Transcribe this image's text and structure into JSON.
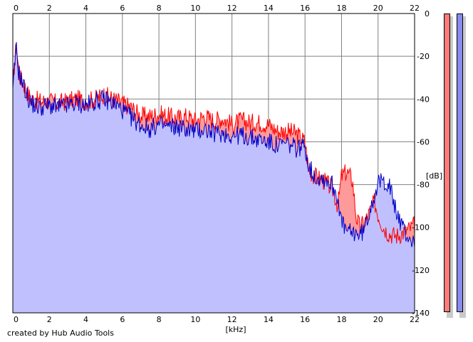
{
  "footer": {
    "credit": "created by Hub Audio Tools"
  },
  "colors": {
    "left_channel": "#ff0000",
    "right_channel": "#0000c8",
    "right_fill": "#c0c0ff",
    "left_fill": "#ff9a9a",
    "grid": "#808080",
    "meter_left": "#ff7a7a",
    "meter_right": "#8a8af0"
  },
  "chart_data": {
    "type": "area",
    "xlabel": "[kHz]",
    "ylabel": "[dB]",
    "xlim": [
      0,
      22
    ],
    "ylim": [
      -140,
      0
    ],
    "x_ticks": [
      0,
      2,
      4,
      6,
      8,
      10,
      12,
      14,
      16,
      18,
      20,
      22
    ],
    "y_ticks": [
      0,
      -20,
      -40,
      -60,
      -80,
      -100,
      -120,
      -140
    ],
    "x_tick_labels_top": [
      "0",
      "2",
      "4",
      "6",
      "8",
      "10",
      "12",
      "14",
      "16",
      "18",
      "20",
      "22"
    ],
    "x_tick_labels_bottom": [
      "0",
      "2",
      "4",
      "6",
      "8",
      "10",
      "12",
      "14",
      "16",
      "18",
      "20",
      "22"
    ],
    "y_tick_labels": [
      "0",
      "-20",
      "-40",
      "-60",
      "-80",
      "-100",
      "-120",
      "-140"
    ],
    "grid": true,
    "series": [
      {
        "channel": "left",
        "x": [
          0,
          0.1,
          0.2,
          0.3,
          0.4,
          0.6,
          0.8,
          1.0,
          1.5,
          2.0,
          2.5,
          3.0,
          3.5,
          4.0,
          4.5,
          5.0,
          5.5,
          6.0,
          6.5,
          7.0,
          7.5,
          8.0,
          8.5,
          9.0,
          9.5,
          10.0,
          10.5,
          11.0,
          11.5,
          12.0,
          12.5,
          13.0,
          13.5,
          14.0,
          14.5,
          15.0,
          15.5,
          16.0,
          16.2,
          16.5,
          17.0,
          17.5,
          17.8,
          18.0,
          18.3,
          18.6,
          18.8,
          19.0,
          19.3,
          19.6,
          19.8,
          20.0,
          20.3,
          20.6,
          21.0,
          21.5,
          22.0
        ],
        "y": [
          -35,
          -22,
          -15,
          -25,
          -30,
          -33,
          -37,
          -40,
          -41,
          -41,
          -42,
          -41,
          -40,
          -41,
          -40,
          -38,
          -40,
          -42,
          -44,
          -48,
          -48,
          -47,
          -48,
          -49,
          -48,
          -50,
          -48,
          -50,
          -49,
          -52,
          -50,
          -51,
          -51,
          -52,
          -55,
          -55,
          -56,
          -60,
          -73,
          -76,
          -78,
          -82,
          -90,
          -76,
          -74,
          -78,
          -95,
          -100,
          -97,
          -92,
          -88,
          -94,
          -100,
          -103,
          -104,
          -102,
          -99
        ]
      },
      {
        "channel": "right",
        "x": [
          0,
          0.1,
          0.2,
          0.3,
          0.4,
          0.6,
          0.8,
          1.0,
          1.5,
          2.0,
          2.5,
          3.0,
          3.5,
          4.0,
          4.5,
          5.0,
          5.5,
          6.0,
          6.5,
          7.0,
          7.5,
          8.0,
          8.5,
          9.0,
          9.5,
          10.0,
          10.5,
          11.0,
          11.5,
          12.0,
          12.5,
          13.0,
          13.5,
          14.0,
          14.5,
          15.0,
          15.5,
          16.0,
          16.2,
          16.5,
          17.0,
          17.5,
          17.8,
          18.0,
          18.3,
          18.6,
          18.8,
          19.0,
          19.3,
          19.6,
          19.8,
          20.0,
          20.3,
          20.6,
          21.0,
          21.5,
          22.0
        ],
        "y": [
          -38,
          -24,
          -16,
          -27,
          -29,
          -34,
          -39,
          -42,
          -44,
          -43,
          -44,
          -43,
          -42,
          -43,
          -41,
          -40,
          -42,
          -45,
          -49,
          -52,
          -54,
          -52,
          -53,
          -53,
          -54,
          -55,
          -54,
          -56,
          -56,
          -57,
          -57,
          -58,
          -59,
          -60,
          -62,
          -61,
          -63,
          -62,
          -71,
          -76,
          -77,
          -80,
          -86,
          -98,
          -102,
          -103,
          -102,
          -104,
          -100,
          -90,
          -85,
          -80,
          -78,
          -80,
          -93,
          -103,
          -108
        ]
      }
    ]
  }
}
